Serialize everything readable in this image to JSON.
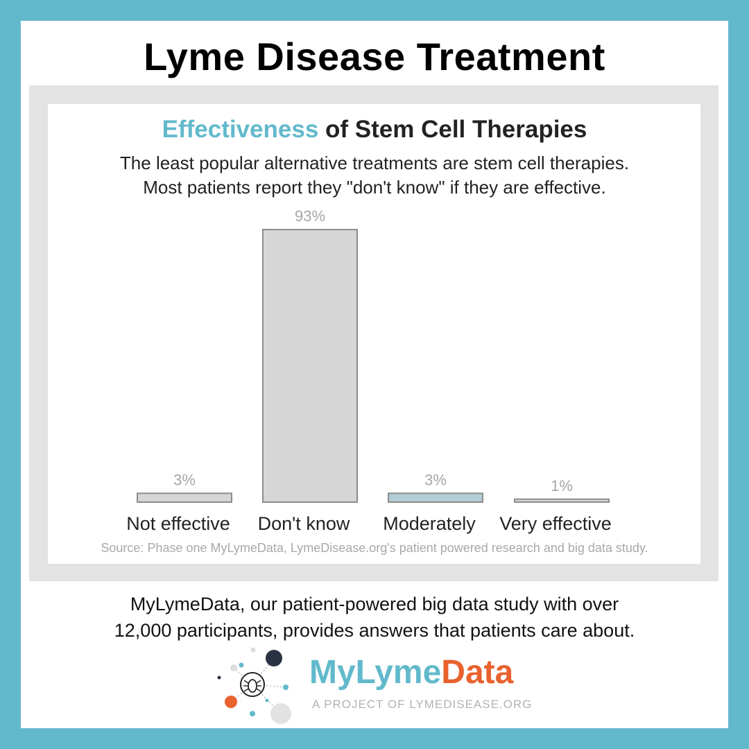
{
  "header": {
    "title": "Lyme Disease Treatment"
  },
  "chart_data": {
    "type": "bar",
    "title_accent": "Effectiveness",
    "title_rest": " of Stem Cell Therapies",
    "subtitle_lines": [
      "The least popular alternative treatments are stem cell therapies.",
      "Most patients report they \"don't know\" if they are effective."
    ],
    "categories": [
      "Not effective",
      "Don't know",
      "Moderately",
      "Very effective"
    ],
    "values": [
      3,
      93,
      3,
      1
    ],
    "value_labels": [
      "3%",
      "93%",
      "3%",
      "1%"
    ],
    "bar_colors": [
      "#d6d6d6",
      "#d6d6d6",
      "#b4ccd6",
      "#d6d6d6"
    ],
    "ylim": [
      0,
      93
    ],
    "grid": false,
    "source": "Source: Phase one MyLymeData, LymeDisease.org's  patient powered research and big data study."
  },
  "footer": {
    "line1": "MyLymeData, our patient-powered big data study with over",
    "line2": "12,000 participants, provides answers that patients care about."
  },
  "logo": {
    "word_part1": "MyLyme",
    "word_part2": "Data",
    "tagline": "A PROJECT OF LYMEDISEASE.ORG",
    "icon": "tick-network-icon"
  },
  "colors": {
    "border": "#62b9cc",
    "accent": "#62b9cc",
    "logo_orange": "#e8622e",
    "panel": "#e3e3e3"
  }
}
